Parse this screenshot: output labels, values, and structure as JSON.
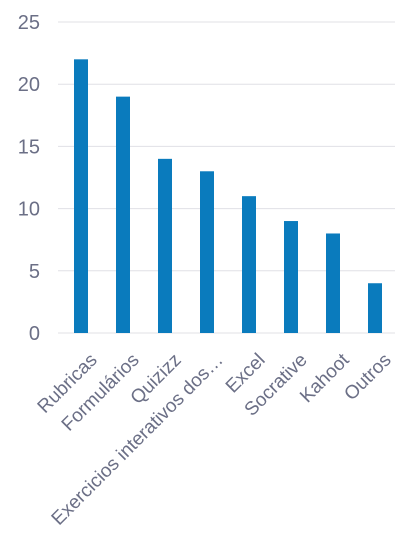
{
  "chart_data": {
    "type": "bar",
    "categories": [
      "Rubricas",
      "Formulários",
      "Quizizz",
      "Exercicios interativos dos…",
      "Excel",
      "Socrative",
      "Kahoot",
      "Outros"
    ],
    "values": [
      22,
      19,
      14,
      13,
      11,
      9,
      8,
      4
    ],
    "title": "",
    "xlabel": "",
    "ylabel": "",
    "ylim": [
      0,
      25
    ],
    "yticks": [
      0,
      5,
      10,
      15,
      20,
      25
    ],
    "grid": true,
    "legend": "none",
    "bar_color": "#0a7bbd"
  }
}
